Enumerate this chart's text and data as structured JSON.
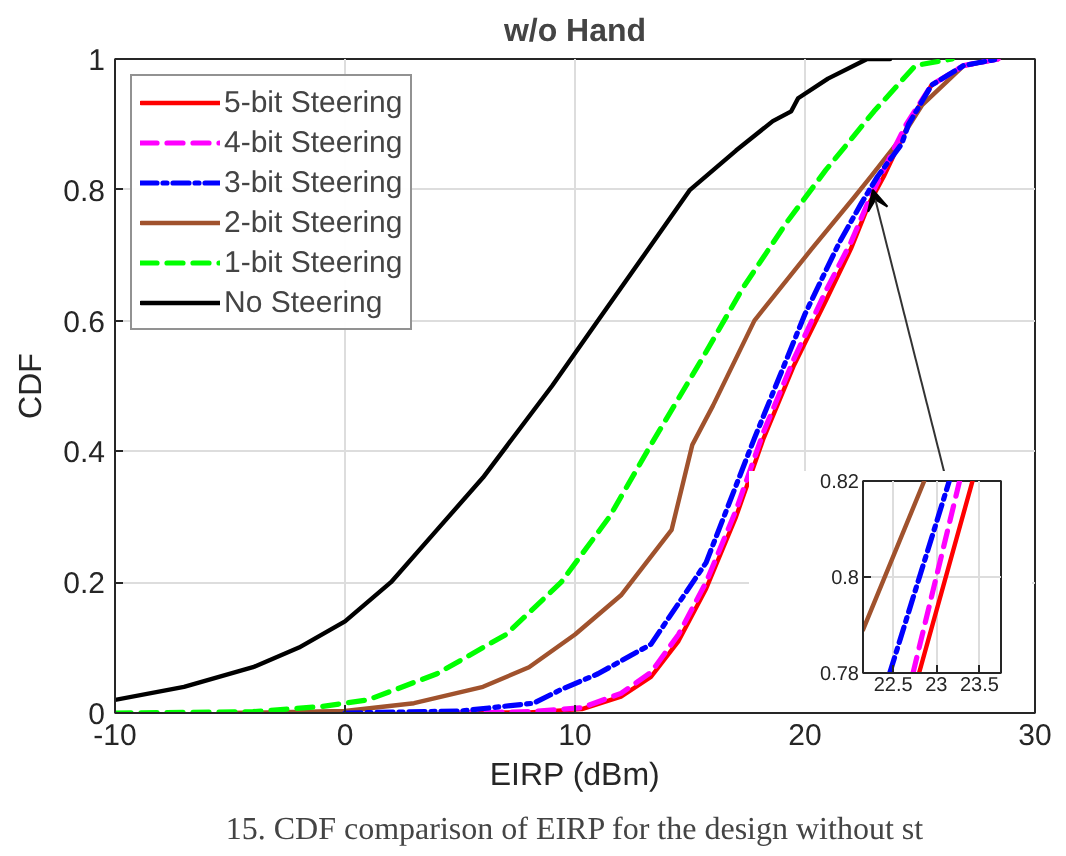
{
  "chart_data": [
    {
      "type": "line",
      "title": "w/o Hand",
      "xlabel": "EIRP (dBm)",
      "ylabel": "CDF",
      "xlim": [
        -10,
        30
      ],
      "ylim": [
        0,
        1
      ],
      "xticks": [
        -10,
        0,
        10,
        20,
        30
      ],
      "yticks": [
        0,
        0.2,
        0.4,
        0.6,
        0.8,
        1
      ],
      "grid": true,
      "legend": "top left",
      "annotations": [
        "15. CDF comparison of EIRP for the design without st"
      ],
      "series": [
        {
          "name": "5-bit Steering",
          "color": "#ff0000",
          "line_style": "solid",
          "x": [
            5,
            8,
            10.3,
            12,
            13.3,
            14.5,
            15.7,
            17,
            18.2,
            19.5,
            20.9,
            22,
            22.8,
            23.42,
            24.5,
            25.5,
            26.9,
            28.4
          ],
          "values": [
            0,
            0.001,
            0.006,
            0.025,
            0.055,
            0.11,
            0.19,
            0.3,
            0.42,
            0.53,
            0.63,
            0.71,
            0.78,
            0.82,
            0.9,
            0.96,
            0.99,
            1
          ]
        },
        {
          "name": "4-bit Steering",
          "color": "#ff00ff",
          "line_style": "dashed",
          "x": [
            5,
            8,
            10.3,
            12,
            13.3,
            14.5,
            15.7,
            17,
            18.2,
            19.5,
            20.9,
            22,
            22.73,
            23.27,
            24.4,
            25.5,
            26.9,
            28.4
          ],
          "values": [
            0,
            0.002,
            0.008,
            0.03,
            0.062,
            0.12,
            0.2,
            0.31,
            0.43,
            0.54,
            0.645,
            0.72,
            0.78,
            0.82,
            0.9,
            0.96,
            0.99,
            1
          ]
        },
        {
          "name": "3-bit Steering",
          "color": "#0000ff",
          "line_style": "dashdot",
          "x": [
            0,
            5,
            8.2,
            9.4,
            11,
            13.3,
            15.7,
            17.8,
            20,
            21.5,
            22.46,
            23.15,
            24.2,
            24.5,
            25.5,
            26.9,
            28.4
          ],
          "values": [
            0,
            0.003,
            0.015,
            0.036,
            0.06,
            0.105,
            0.23,
            0.42,
            0.61,
            0.72,
            0.78,
            0.82,
            0.87,
            0.9,
            0.96,
            0.99,
            1
          ]
        },
        {
          "name": "2-bit Steering",
          "color": "#a0522d",
          "line_style": "solid",
          "x": [
            -5,
            0,
            3,
            6,
            8,
            10,
            12,
            14.2,
            15.1,
            16,
            17.8,
            20.3,
            22.15,
            22.86,
            24.2,
            25.1,
            26.9,
            28.4
          ],
          "values": [
            0,
            0.003,
            0.015,
            0.04,
            0.07,
            0.12,
            0.18,
            0.28,
            0.41,
            0.47,
            0.6,
            0.71,
            0.789,
            0.82,
            0.88,
            0.93,
            0.99,
            1
          ]
        },
        {
          "name": "1-bit Steering",
          "color": "#00ff00",
          "line_style": "dashed",
          "x": [
            -10,
            -4,
            -1,
            1,
            4,
            7,
            9.4,
            11.5,
            13.3,
            15.5,
            17.3,
            19.2,
            20.9,
            23,
            24.8,
            26.4
          ],
          "values": [
            0,
            0.002,
            0.01,
            0.02,
            0.06,
            0.12,
            0.2,
            0.3,
            0.41,
            0.54,
            0.65,
            0.75,
            0.83,
            0.92,
            0.99,
            1
          ]
        },
        {
          "name": "No Steering",
          "color": "#000000",
          "line_style": "solid",
          "x": [
            -10,
            -7,
            -4,
            -2,
            0,
            2,
            4,
            6,
            7.5,
            9,
            11,
            13,
            15,
            17,
            18.6,
            19.4,
            19.7,
            21,
            22.7,
            23.7
          ],
          "values": [
            0.02,
            0.04,
            0.07,
            0.1,
            0.14,
            0.2,
            0.28,
            0.36,
            0.43,
            0.5,
            0.6,
            0.7,
            0.8,
            0.86,
            0.905,
            0.92,
            0.94,
            0.97,
            1,
            1
          ]
        }
      ]
    },
    {
      "type": "line",
      "xlim": [
        22.15,
        23.75
      ],
      "ylim": [
        0.78,
        0.82
      ],
      "xticks": [
        22.5,
        23,
        23.5
      ],
      "yticks": [
        0.78,
        0.8,
        0.82
      ],
      "grid": true,
      "series": [
        {
          "color": "#ff0000",
          "line_style": "solid",
          "x": [
            22.8,
            23.42
          ],
          "values": [
            0.78,
            0.82
          ]
        },
        {
          "color": "#ff00ff",
          "line_style": "dashed",
          "x": [
            22.73,
            23.27
          ],
          "values": [
            0.78,
            0.82
          ]
        },
        {
          "color": "#0000ff",
          "line_style": "dashdot",
          "x": [
            22.46,
            23.15
          ],
          "values": [
            0.78,
            0.82
          ]
        },
        {
          "color": "#a0522d",
          "line_style": "solid",
          "x": [
            22.15,
            22.86
          ],
          "values": [
            0.789,
            0.82
          ]
        }
      ]
    }
  ]
}
